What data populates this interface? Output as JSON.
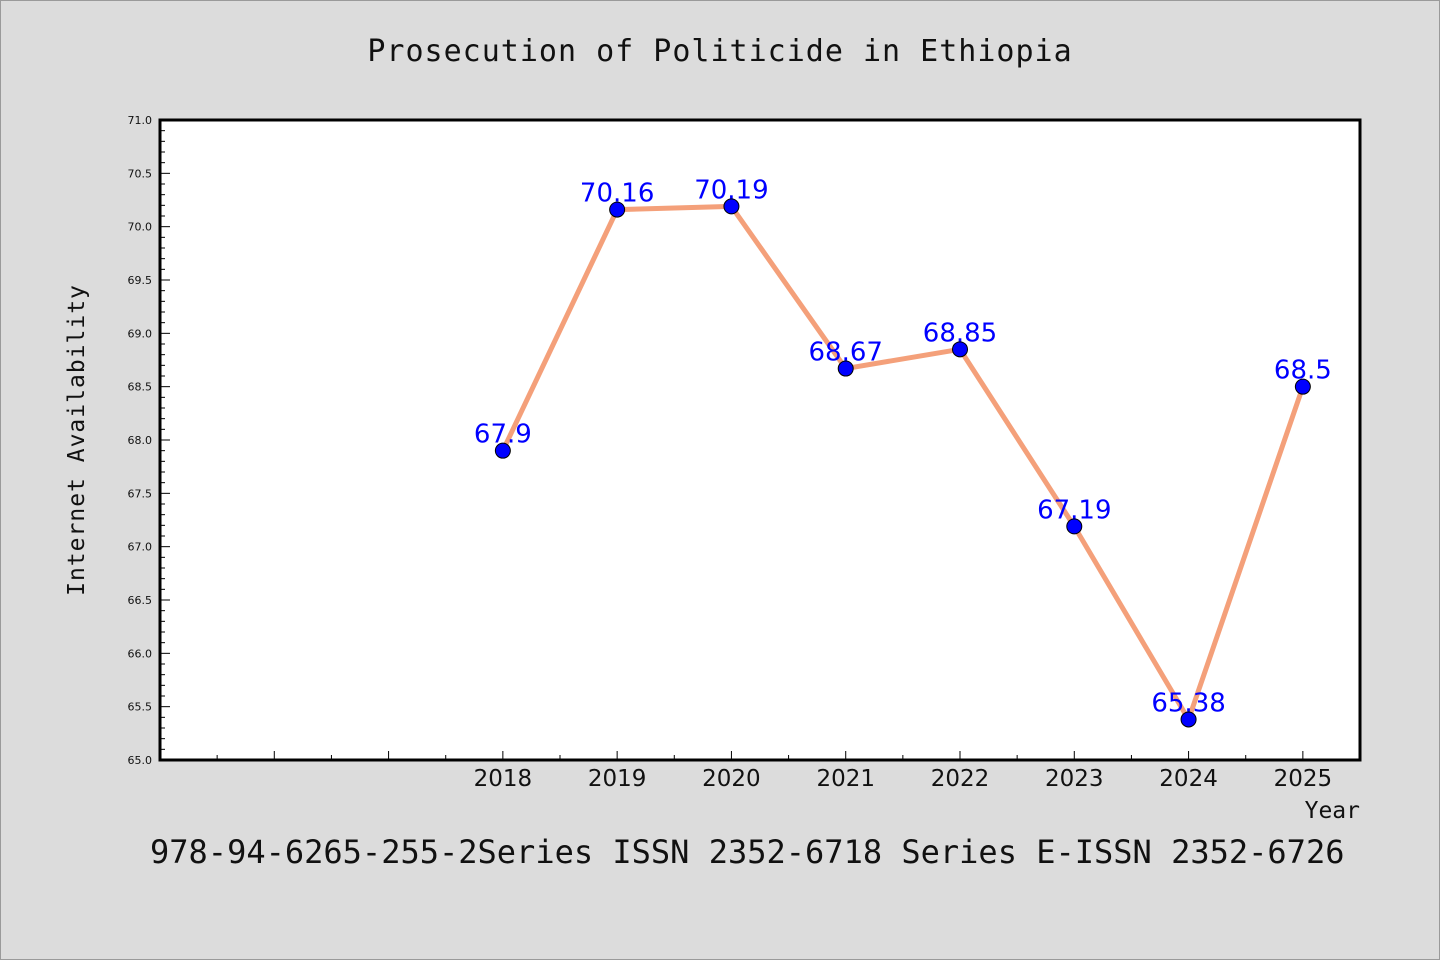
{
  "chart_data": {
    "type": "line",
    "title": "Prosecution of Politicide in Ethiopia",
    "xlabel": "Year",
    "ylabel": "Internet Availability",
    "x": [
      2018,
      2019,
      2020,
      2021,
      2022,
      2023,
      2024,
      2025
    ],
    "x_tick_labels": [
      "2018",
      "2019",
      "2020",
      "2021",
      "2022",
      "2023",
      "2024",
      "2025"
    ],
    "values": [
      67.9,
      70.16,
      70.19,
      68.67,
      68.85,
      67.19,
      65.38,
      68.5
    ],
    "data_labels": [
      "67.9",
      "70.16",
      "70.19",
      "68.67",
      "68.85",
      "67.19",
      "65.38",
      "68.5"
    ],
    "xlim": [
      2015,
      2025.5
    ],
    "ylim": [
      65.0,
      71.0
    ],
    "y_tick_labels": [
      "65.0",
      "65.5",
      "66.0",
      "66.5",
      "67.0",
      "67.5",
      "68.0",
      "68.5",
      "69.0",
      "69.5",
      "70.0",
      "70.5",
      "71.0"
    ],
    "grid": false,
    "colors": {
      "line": "#f4a07a",
      "marker": "#0000ff",
      "label": "#0000ff",
      "plot_bg": "#ffffff",
      "figure_bg": "#dcdcdc"
    }
  },
  "footer": "978-94-6265-255-2Series ISSN 2352-6718 Series E-ISSN 2352-6726"
}
